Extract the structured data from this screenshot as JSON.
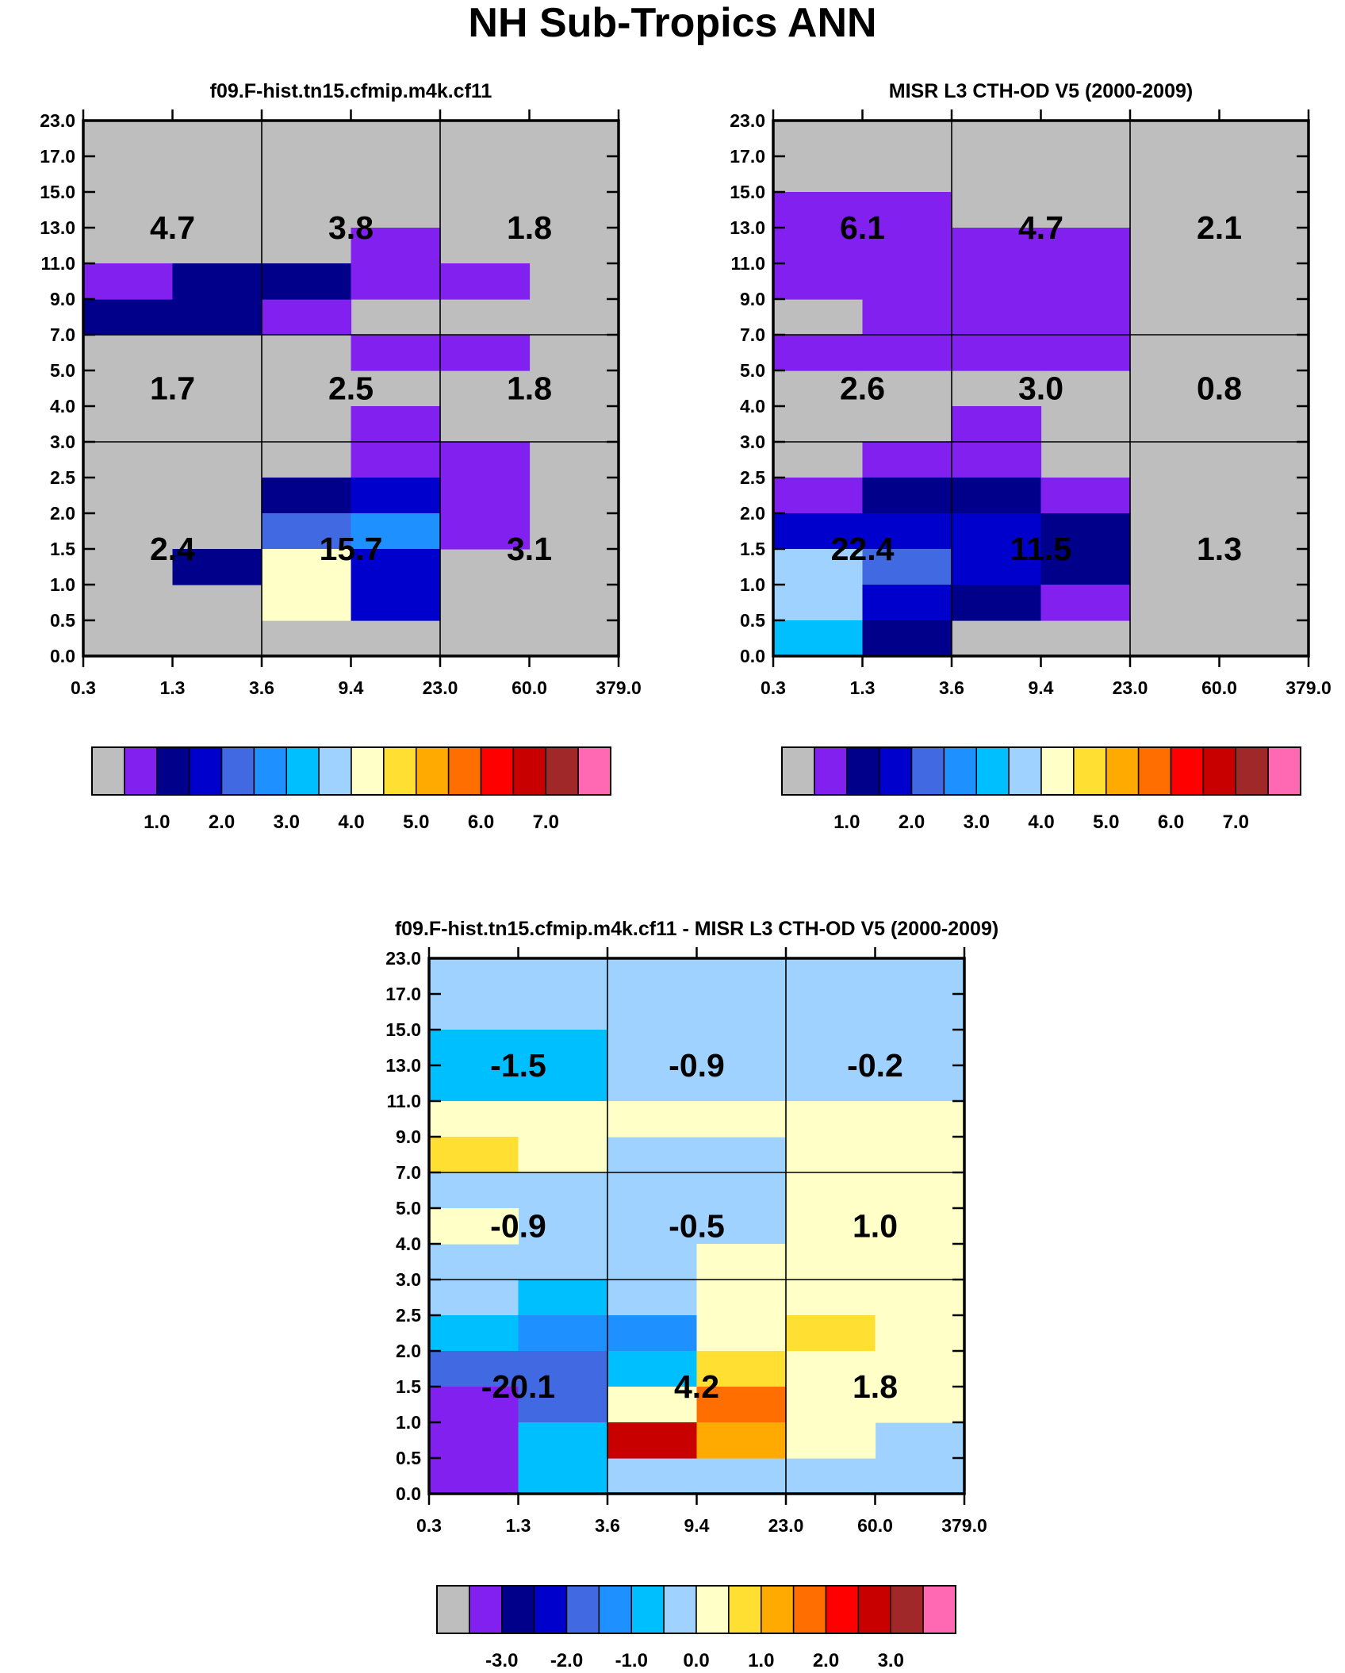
{
  "page_title": "NH Sub-Tropics ANN",
  "palette": {
    "missing": "#bebebe",
    "c01": "#8220f0",
    "c02": "#00008b",
    "c03": "#0000cd",
    "c04": "#4169e1",
    "c05": "#1e90ff",
    "c06": "#00bfff",
    "c07": "#a0d2ff",
    "c08": "#ffffc8",
    "c09": "#ffe032",
    "c10": "#ffaa00",
    "c11": "#ff6e00",
    "c12": "#ff0000",
    "c13": "#c80000",
    "c14": "#a02828",
    "c15": "#ff69b4"
  },
  "chart_data": [
    {
      "id": "model",
      "type": "heatmap",
      "title": "f09.F-hist.tn15.cfmip.m4k.cf11",
      "x_tick_labels": [
        "0.3",
        "1.3",
        "3.6",
        "9.4",
        "23.0",
        "60.0",
        "379.0"
      ],
      "y_tick_labels": [
        "0.0",
        "0.5",
        "1.0",
        "1.5",
        "2.0",
        "2.5",
        "3.0",
        "4.0",
        "5.0",
        "7.0",
        "9.0",
        "11.0",
        "13.0",
        "15.0",
        "17.0",
        "23.0"
      ],
      "default_fill": "missing",
      "cells": [
        {
          "x": 0,
          "y": 9,
          "c": "c02"
        },
        {
          "x": 1,
          "y": 9,
          "c": "c02"
        },
        {
          "x": 2,
          "y": 9,
          "c": "c01"
        },
        {
          "x": 0,
          "y": 10,
          "c": "c01"
        },
        {
          "x": 1,
          "y": 10,
          "c": "c02"
        },
        {
          "x": 2,
          "y": 10,
          "c": "c02"
        },
        {
          "x": 3,
          "y": 10,
          "c": "c01"
        },
        {
          "x": 4,
          "y": 10,
          "c": "c01"
        },
        {
          "x": 3,
          "y": 11,
          "c": "c01"
        },
        {
          "x": 3,
          "y": 8,
          "c": "c01"
        },
        {
          "x": 4,
          "y": 8,
          "c": "c01"
        },
        {
          "x": 3,
          "y": 6,
          "c": "c01"
        },
        {
          "x": 3,
          "y": 5,
          "c": "c01"
        },
        {
          "x": 4,
          "y": 5,
          "c": "c01"
        },
        {
          "x": 2,
          "y": 4,
          "c": "c02"
        },
        {
          "x": 3,
          "y": 4,
          "c": "c03"
        },
        {
          "x": 4,
          "y": 4,
          "c": "c01"
        },
        {
          "x": 2,
          "y": 3,
          "c": "c04"
        },
        {
          "x": 3,
          "y": 3,
          "c": "c05"
        },
        {
          "x": 4,
          "y": 3,
          "c": "c01"
        },
        {
          "x": 1,
          "y": 2,
          "c": "c02"
        },
        {
          "x": 2,
          "y": 2,
          "c": "c08"
        },
        {
          "x": 3,
          "y": 2,
          "c": "c03"
        },
        {
          "x": 2,
          "y": 1,
          "c": "c08"
        },
        {
          "x": 3,
          "y": 1,
          "c": "c03"
        }
      ],
      "box_values": [
        {
          "row": "high",
          "col": "thin",
          "value": "4.7"
        },
        {
          "row": "high",
          "col": "mid",
          "value": "3.8"
        },
        {
          "row": "high",
          "col": "thick",
          "value": "1.8"
        },
        {
          "row": "mid",
          "col": "thin",
          "value": "1.7"
        },
        {
          "row": "mid",
          "col": "mid",
          "value": "2.5"
        },
        {
          "row": "mid",
          "col": "thick",
          "value": "1.8"
        },
        {
          "row": "low",
          "col": "thin",
          "value": "2.4"
        },
        {
          "row": "low",
          "col": "mid",
          "value": "15.7"
        },
        {
          "row": "low",
          "col": "thick",
          "value": "3.1"
        }
      ],
      "colorbar": {
        "colors": [
          "missing",
          "c01",
          "c02",
          "c03",
          "c04",
          "c05",
          "c06",
          "c07",
          "c08",
          "c09",
          "c10",
          "c11",
          "c12",
          "c13",
          "c14",
          "c15"
        ],
        "labels": [
          {
            "text": "1.0",
            "index": 2
          },
          {
            "text": "2.0",
            "index": 4
          },
          {
            "text": "3.0",
            "index": 6
          },
          {
            "text": "4.0",
            "index": 8
          },
          {
            "text": "5.0",
            "index": 10
          },
          {
            "text": "6.0",
            "index": 12
          },
          {
            "text": "7.0",
            "index": 14
          }
        ]
      }
    },
    {
      "id": "obs",
      "type": "heatmap",
      "title": "MISR L3 CTH-OD V5 (2000-2009)",
      "x_tick_labels": [
        "0.3",
        "1.3",
        "3.6",
        "9.4",
        "23.0",
        "60.0",
        "379.0"
      ],
      "y_tick_labels": [
        "0.0",
        "0.5",
        "1.0",
        "1.5",
        "2.0",
        "2.5",
        "3.0",
        "4.0",
        "5.0",
        "7.0",
        "9.0",
        "11.0",
        "13.0",
        "15.0",
        "17.0",
        "23.0"
      ],
      "default_fill": "missing",
      "cells": [
        {
          "x": 0,
          "y": 12,
          "c": "c01"
        },
        {
          "x": 1,
          "y": 12,
          "c": "c01"
        },
        {
          "x": 0,
          "y": 11,
          "c": "c01"
        },
        {
          "x": 1,
          "y": 11,
          "c": "c01"
        },
        {
          "x": 2,
          "y": 11,
          "c": "c01"
        },
        {
          "x": 3,
          "y": 11,
          "c": "c01"
        },
        {
          "x": 0,
          "y": 10,
          "c": "c01"
        },
        {
          "x": 1,
          "y": 10,
          "c": "c01"
        },
        {
          "x": 2,
          "y": 10,
          "c": "c01"
        },
        {
          "x": 3,
          "y": 10,
          "c": "c01"
        },
        {
          "x": 1,
          "y": 9,
          "c": "c01"
        },
        {
          "x": 2,
          "y": 9,
          "c": "c01"
        },
        {
          "x": 3,
          "y": 9,
          "c": "c01"
        },
        {
          "x": 0,
          "y": 8,
          "c": "c01"
        },
        {
          "x": 1,
          "y": 8,
          "c": "c01"
        },
        {
          "x": 2,
          "y": 8,
          "c": "c01"
        },
        {
          "x": 3,
          "y": 8,
          "c": "c01"
        },
        {
          "x": 2,
          "y": 6,
          "c": "c01"
        },
        {
          "x": 1,
          "y": 5,
          "c": "c01"
        },
        {
          "x": 2,
          "y": 5,
          "c": "c01"
        },
        {
          "x": 0,
          "y": 4,
          "c": "c01"
        },
        {
          "x": 1,
          "y": 4,
          "c": "c02"
        },
        {
          "x": 2,
          "y": 4,
          "c": "c02"
        },
        {
          "x": 3,
          "y": 4,
          "c": "c01"
        },
        {
          "x": 0,
          "y": 3,
          "c": "c03"
        },
        {
          "x": 1,
          "y": 3,
          "c": "c03"
        },
        {
          "x": 2,
          "y": 3,
          "c": "c03"
        },
        {
          "x": 3,
          "y": 3,
          "c": "c02"
        },
        {
          "x": 0,
          "y": 2,
          "c": "c07"
        },
        {
          "x": 1,
          "y": 2,
          "c": "c04"
        },
        {
          "x": 2,
          "y": 2,
          "c": "c03"
        },
        {
          "x": 3,
          "y": 2,
          "c": "c02"
        },
        {
          "x": 0,
          "y": 1,
          "c": "c07"
        },
        {
          "x": 1,
          "y": 1,
          "c": "c03"
        },
        {
          "x": 2,
          "y": 1,
          "c": "c02"
        },
        {
          "x": 3,
          "y": 1,
          "c": "c01"
        },
        {
          "x": 0,
          "y": 0,
          "c": "c06"
        },
        {
          "x": 1,
          "y": 0,
          "c": "c02"
        }
      ],
      "box_values": [
        {
          "row": "high",
          "col": "thin",
          "value": "6.1"
        },
        {
          "row": "high",
          "col": "mid",
          "value": "4.7"
        },
        {
          "row": "high",
          "col": "thick",
          "value": "2.1"
        },
        {
          "row": "mid",
          "col": "thin",
          "value": "2.6"
        },
        {
          "row": "mid",
          "col": "mid",
          "value": "3.0"
        },
        {
          "row": "mid",
          "col": "thick",
          "value": "0.8"
        },
        {
          "row": "low",
          "col": "thin",
          "value": "22.4"
        },
        {
          "row": "low",
          "col": "mid",
          "value": "11.5"
        },
        {
          "row": "low",
          "col": "thick",
          "value": "1.3"
        }
      ],
      "colorbar": {
        "colors": [
          "missing",
          "c01",
          "c02",
          "c03",
          "c04",
          "c05",
          "c06",
          "c07",
          "c08",
          "c09",
          "c10",
          "c11",
          "c12",
          "c13",
          "c14",
          "c15"
        ],
        "labels": [
          {
            "text": "1.0",
            "index": 2
          },
          {
            "text": "2.0",
            "index": 4
          },
          {
            "text": "3.0",
            "index": 6
          },
          {
            "text": "4.0",
            "index": 8
          },
          {
            "text": "5.0",
            "index": 10
          },
          {
            "text": "6.0",
            "index": 12
          },
          {
            "text": "7.0",
            "index": 14
          }
        ]
      }
    },
    {
      "id": "diff",
      "type": "heatmap",
      "title": "f09.F-hist.tn15.cfmip.m4k.cf11 - MISR L3 CTH-OD V5 (2000-2009)",
      "x_tick_labels": [
        "0.3",
        "1.3",
        "3.6",
        "9.4",
        "23.0",
        "60.0",
        "379.0"
      ],
      "y_tick_labels": [
        "0.0",
        "0.5",
        "1.0",
        "1.5",
        "2.0",
        "2.5",
        "3.0",
        "4.0",
        "5.0",
        "7.0",
        "9.0",
        "11.0",
        "13.0",
        "15.0",
        "17.0",
        "23.0"
      ],
      "default_fill": "c07",
      "cells": [
        {
          "x": 0,
          "y": 12,
          "c": "c06"
        },
        {
          "x": 1,
          "y": 12,
          "c": "c06"
        },
        {
          "x": 0,
          "y": 11,
          "c": "c06"
        },
        {
          "x": 1,
          "y": 11,
          "c": "c06"
        },
        {
          "x": 0,
          "y": 10,
          "c": "c08"
        },
        {
          "x": 1,
          "y": 10,
          "c": "c08"
        },
        {
          "x": 2,
          "y": 10,
          "c": "c08"
        },
        {
          "x": 3,
          "y": 10,
          "c": "c08"
        },
        {
          "x": 4,
          "y": 10,
          "c": "c08"
        },
        {
          "x": 5,
          "y": 10,
          "c": "c08"
        },
        {
          "x": 0,
          "y": 9,
          "c": "c09"
        },
        {
          "x": 1,
          "y": 9,
          "c": "c08"
        },
        {
          "x": 4,
          "y": 9,
          "c": "c08"
        },
        {
          "x": 5,
          "y": 9,
          "c": "c08"
        },
        {
          "x": 4,
          "y": 8,
          "c": "c08"
        },
        {
          "x": 5,
          "y": 8,
          "c": "c08"
        },
        {
          "x": 0,
          "y": 7,
          "c": "c08"
        },
        {
          "x": 4,
          "y": 7,
          "c": "c08"
        },
        {
          "x": 5,
          "y": 7,
          "c": "c08"
        },
        {
          "x": 3,
          "y": 6,
          "c": "c08"
        },
        {
          "x": 4,
          "y": 6,
          "c": "c08"
        },
        {
          "x": 5,
          "y": 6,
          "c": "c08"
        },
        {
          "x": 1,
          "y": 5,
          "c": "c06"
        },
        {
          "x": 3,
          "y": 5,
          "c": "c08"
        },
        {
          "x": 4,
          "y": 5,
          "c": "c08"
        },
        {
          "x": 5,
          "y": 5,
          "c": "c08"
        },
        {
          "x": 0,
          "y": 4,
          "c": "c06"
        },
        {
          "x": 1,
          "y": 4,
          "c": "c05"
        },
        {
          "x": 2,
          "y": 4,
          "c": "c05"
        },
        {
          "x": 3,
          "y": 4,
          "c": "c08"
        },
        {
          "x": 4,
          "y": 4,
          "c": "c09"
        },
        {
          "x": 5,
          "y": 4,
          "c": "c08"
        },
        {
          "x": 0,
          "y": 3,
          "c": "c04"
        },
        {
          "x": 1,
          "y": 3,
          "c": "c04"
        },
        {
          "x": 2,
          "y": 3,
          "c": "c06"
        },
        {
          "x": 3,
          "y": 3,
          "c": "c09"
        },
        {
          "x": 4,
          "y": 3,
          "c": "c08"
        },
        {
          "x": 5,
          "y": 3,
          "c": "c08"
        },
        {
          "x": 0,
          "y": 2,
          "c": "c01"
        },
        {
          "x": 1,
          "y": 2,
          "c": "c04"
        },
        {
          "x": 2,
          "y": 2,
          "c": "c08"
        },
        {
          "x": 3,
          "y": 2,
          "c": "c11"
        },
        {
          "x": 4,
          "y": 2,
          "c": "c08"
        },
        {
          "x": 5,
          "y": 2,
          "c": "c08"
        },
        {
          "x": 0,
          "y": 1,
          "c": "c01"
        },
        {
          "x": 1,
          "y": 1,
          "c": "c06"
        },
        {
          "x": 2,
          "y": 1,
          "c": "c13"
        },
        {
          "x": 3,
          "y": 1,
          "c": "c10"
        },
        {
          "x": 4,
          "y": 1,
          "c": "c08"
        },
        {
          "x": 0,
          "y": 0,
          "c": "c01"
        },
        {
          "x": 1,
          "y": 0,
          "c": "c06"
        }
      ],
      "box_values": [
        {
          "row": "high",
          "col": "thin",
          "value": "-1.5"
        },
        {
          "row": "high",
          "col": "mid",
          "value": "-0.9"
        },
        {
          "row": "high",
          "col": "thick",
          "value": "-0.2"
        },
        {
          "row": "mid",
          "col": "thin",
          "value": "-0.9"
        },
        {
          "row": "mid",
          "col": "mid",
          "value": "-0.5"
        },
        {
          "row": "mid",
          "col": "thick",
          "value": "1.0"
        },
        {
          "row": "low",
          "col": "thin",
          "value": "-20.1"
        },
        {
          "row": "low",
          "col": "mid",
          "value": "4.2"
        },
        {
          "row": "low",
          "col": "thick",
          "value": "1.8"
        }
      ],
      "colorbar": {
        "colors": [
          "missing",
          "c01",
          "c02",
          "c03",
          "c04",
          "c05",
          "c06",
          "c07",
          "c08",
          "c09",
          "c10",
          "c11",
          "c12",
          "c13",
          "c14",
          "c15"
        ],
        "labels": [
          {
            "text": "-3.0",
            "index": 2
          },
          {
            "text": "-2.0",
            "index": 4
          },
          {
            "text": "-1.0",
            "index": 6
          },
          {
            "text": "0.0",
            "index": 8
          },
          {
            "text": "1.0",
            "index": 10
          },
          {
            "text": "2.0",
            "index": 12
          },
          {
            "text": "3.0",
            "index": 14
          }
        ]
      }
    }
  ]
}
